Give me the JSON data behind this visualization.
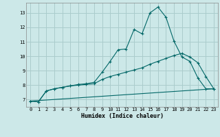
{
  "xlabel": "Humidex (Indice chaleur)",
  "background_color": "#cce8e8",
  "grid_color": "#aacccc",
  "line_color": "#006666",
  "xlim": [
    -0.5,
    23.5
  ],
  "ylim": [
    6.5,
    13.7
  ],
  "yticks": [
    7,
    8,
    9,
    10,
    11,
    12,
    13
  ],
  "xticks": [
    0,
    1,
    2,
    3,
    4,
    5,
    6,
    7,
    8,
    9,
    10,
    11,
    12,
    13,
    14,
    15,
    16,
    17,
    18,
    19,
    20,
    21,
    22,
    23
  ],
  "line1_x": [
    0,
    1,
    2,
    3,
    4,
    5,
    6,
    7,
    8,
    9,
    10,
    11,
    12,
    13,
    14,
    15,
    16,
    17,
    18,
    19,
    20,
    21,
    22,
    23
  ],
  "line1_y": [
    6.9,
    6.85,
    7.6,
    7.75,
    7.85,
    7.95,
    8.05,
    8.1,
    8.2,
    8.9,
    9.65,
    10.45,
    10.5,
    11.85,
    11.55,
    13.0,
    13.4,
    12.7,
    11.05,
    9.95,
    9.65,
    8.5,
    7.75,
    7.75
  ],
  "line2_x": [
    0,
    1,
    2,
    3,
    4,
    5,
    6,
    7,
    8,
    9,
    10,
    11,
    12,
    13,
    14,
    15,
    16,
    17,
    18,
    19,
    20,
    21,
    22,
    23
  ],
  "line2_y": [
    6.9,
    6.85,
    7.6,
    7.75,
    7.85,
    7.95,
    8.0,
    8.05,
    8.1,
    8.4,
    8.6,
    8.75,
    8.9,
    9.05,
    9.2,
    9.45,
    9.65,
    9.85,
    10.05,
    10.2,
    9.95,
    9.55,
    8.6,
    7.75
  ],
  "line3_x": [
    0,
    23
  ],
  "line3_y": [
    6.9,
    7.75
  ]
}
